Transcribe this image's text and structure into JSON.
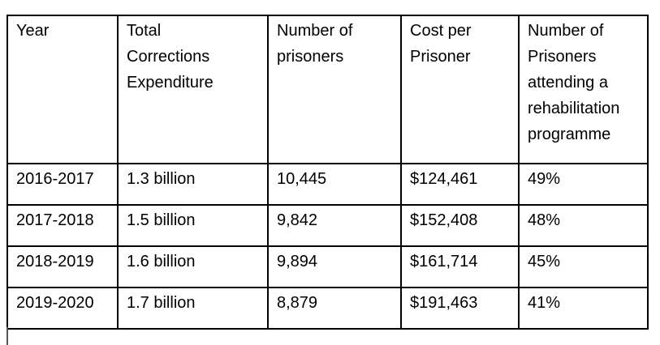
{
  "table": {
    "headers": [
      "Year",
      "Total\nCorrections\nExpenditure",
      "Number of\nprisoners",
      "Cost per\nPrisoner",
      "Number of\nPrisoners\nattending a\nrehabilitation\nprogramme"
    ],
    "rows": [
      [
        "2016-2017",
        "1.3 billion",
        "10,445",
        "$124,461",
        "49%"
      ],
      [
        "2017-2018",
        "1.5 billion",
        "9,842",
        "$152,408",
        "48%"
      ],
      [
        "2018-2019",
        "1.6 billion",
        "9,894",
        "$161,714",
        "45%"
      ],
      [
        "2019-2020",
        "1.7 billion",
        "8,879",
        "$191,463",
        "41%"
      ]
    ]
  }
}
